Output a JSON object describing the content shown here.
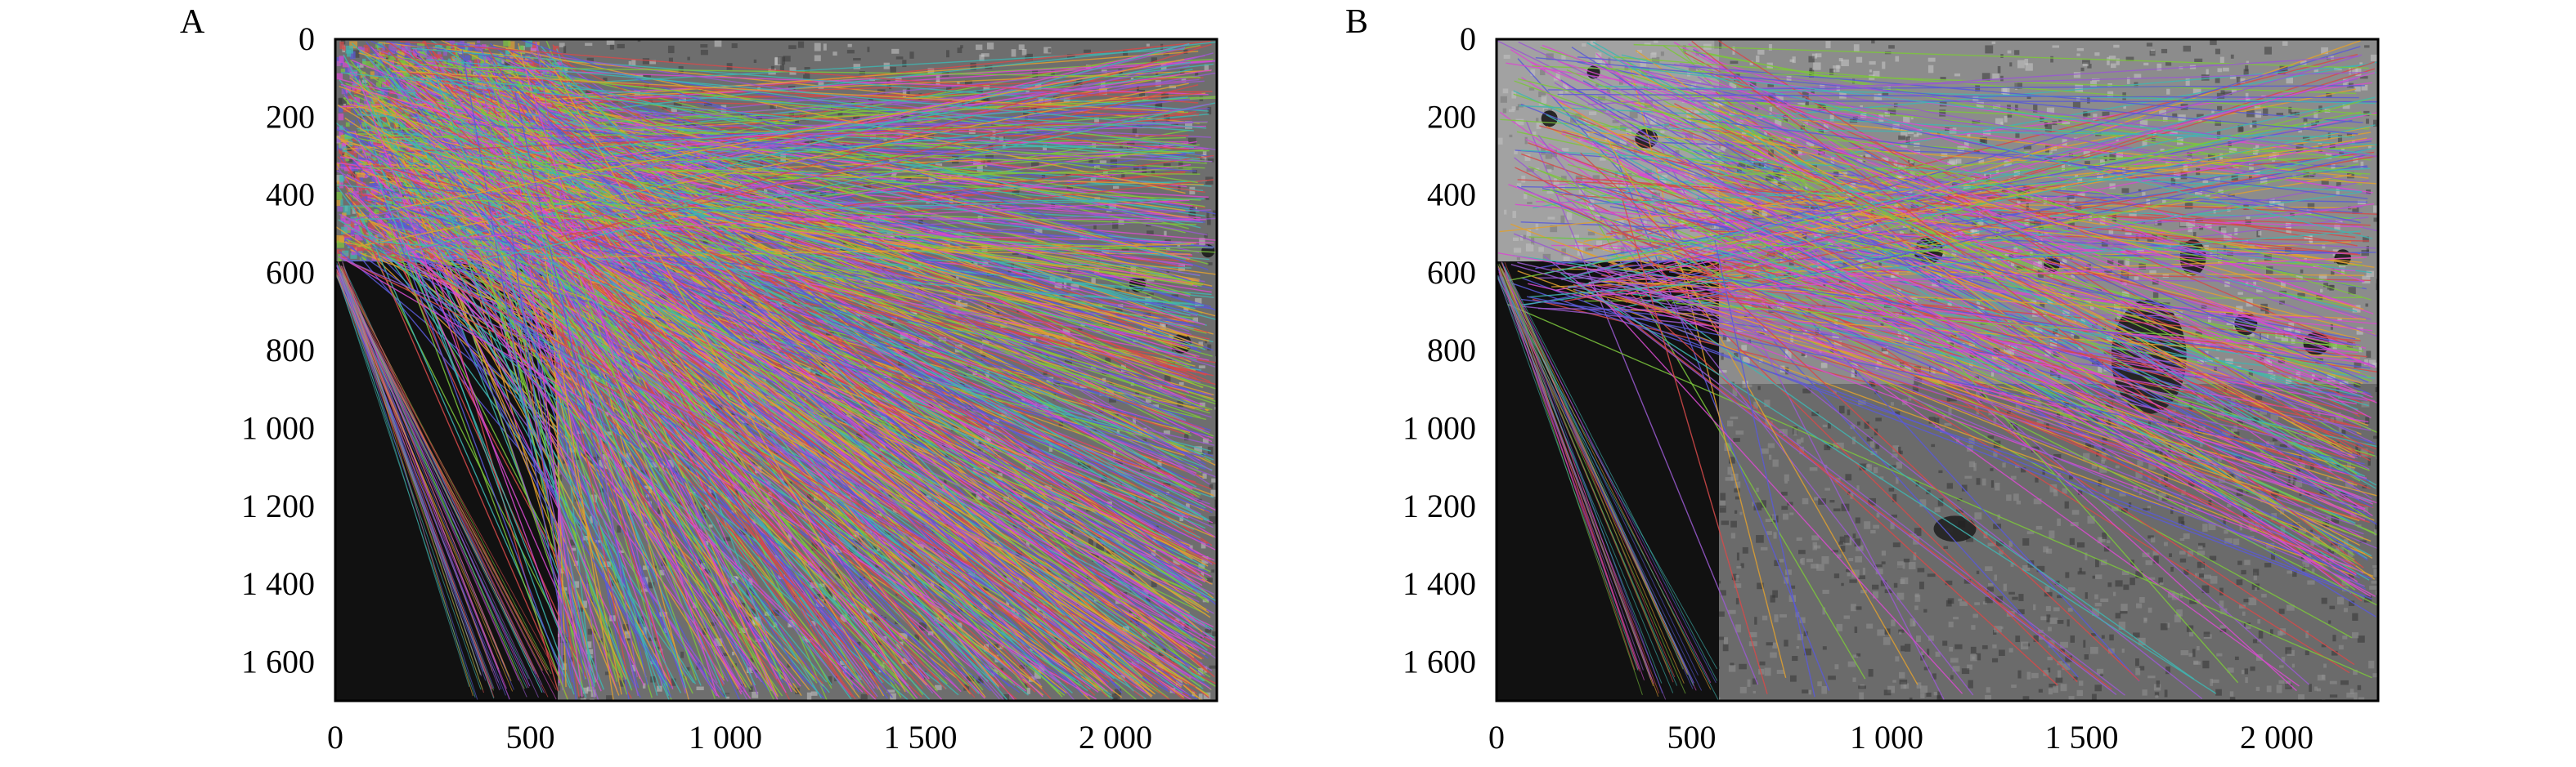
{
  "panels": [
    {
      "letter": "A",
      "x_ticks": [
        0,
        500,
        1000,
        1500,
        2000
      ],
      "x_tick_labels": [
        "0",
        "500",
        "1 000",
        "1 500",
        "2 000"
      ],
      "y_ticks": [
        0,
        200,
        400,
        600,
        800,
        1000,
        1200,
        1400,
        1600
      ],
      "y_tick_labels": [
        "0",
        "200",
        "400",
        "600",
        "800",
        "1 000",
        "1 200",
        "1 400",
        "1 600"
      ],
      "xlim": [
        0,
        2260
      ],
      "ylim": [
        0,
        1700
      ]
    },
    {
      "letter": "B",
      "x_ticks": [
        0,
        500,
        1000,
        1500,
        2000
      ],
      "x_tick_labels": [
        "0",
        "500",
        "1 000",
        "1 500",
        "2 000"
      ],
      "y_ticks": [
        0,
        200,
        400,
        600,
        800,
        1000,
        1200,
        1400,
        1600
      ],
      "y_tick_labels": [
        "0",
        "200",
        "400",
        "600",
        "800",
        "1 000",
        "1 200",
        "1 400",
        "1 600"
      ],
      "xlim": [
        0,
        2260
      ],
      "ylim": [
        0,
        1700
      ]
    }
  ],
  "colors": {
    "match_lines": [
      "#d94bd0",
      "#7cc63c",
      "#5a5ad8",
      "#3fb6b2",
      "#d64a4a",
      "#e0a030",
      "#9a5ad0"
    ],
    "black_region": "#111111",
    "texture_light": "#c9c9c9",
    "texture_dark": "#3a3a3a"
  }
}
